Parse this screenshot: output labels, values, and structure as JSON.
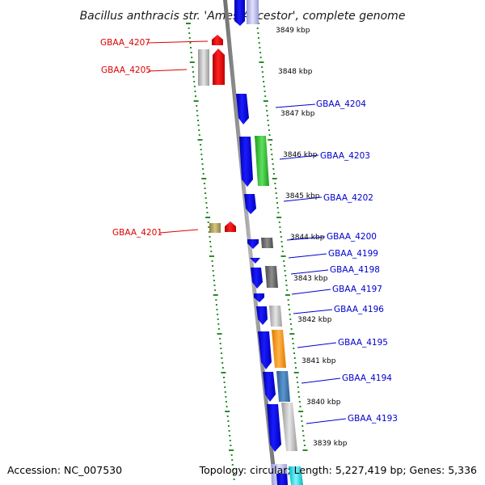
{
  "title": "Bacillus anthracis str. 'Ames Ancestor', complete genome",
  "footer": {
    "accession": "Accession: NC_007530",
    "summary": "Topology: circular; Length: 5,227,419 bp; Genes: 5,336"
  },
  "colors": {
    "forward": "#0a0ae6",
    "reverse": "#ff0000",
    "green": "#2fc22f",
    "orange": "#ff9a1c",
    "steelblue": "#3e7cb8",
    "grey": "#bdbdbd",
    "darkgrey": "#6a6a6a",
    "khaki": "#b5a55a",
    "cyan": "#00e5ee",
    "backbone": "#8c8c8c",
    "tick_green": "#2a8a2a",
    "label_forward": "#0000cc",
    "label_reverse": "#dd0000"
  },
  "scale": {
    "unit": "kbp",
    "labels": [
      "3849 kbp",
      "3848 kbp",
      "3847 kbp",
      "3846 kbp",
      "3845 kbp",
      "3844 kbp",
      "3843 kbp",
      "3842 kbp",
      "3841 kbp",
      "3840 kbp",
      "3839 kbp"
    ]
  },
  "gene_labels": [
    {
      "name": "GBAA_4207",
      "strand": "reverse"
    },
    {
      "name": "GBAA_4205",
      "strand": "reverse"
    },
    {
      "name": "GBAA_4204",
      "strand": "forward"
    },
    {
      "name": "GBAA_4203",
      "strand": "forward"
    },
    {
      "name": "GBAA_4202",
      "strand": "forward"
    },
    {
      "name": "GBAA_4201",
      "strand": "reverse"
    },
    {
      "name": "GBAA_4200",
      "strand": "forward"
    },
    {
      "name": "GBAA_4199",
      "strand": "forward"
    },
    {
      "name": "GBAA_4198",
      "strand": "forward"
    },
    {
      "name": "GBAA_4197",
      "strand": "forward"
    },
    {
      "name": "GBAA_4196",
      "strand": "forward"
    },
    {
      "name": "GBAA_4195",
      "strand": "forward"
    },
    {
      "name": "GBAA_4194",
      "strand": "forward"
    },
    {
      "name": "GBAA_4193",
      "strand": "forward"
    }
  ]
}
